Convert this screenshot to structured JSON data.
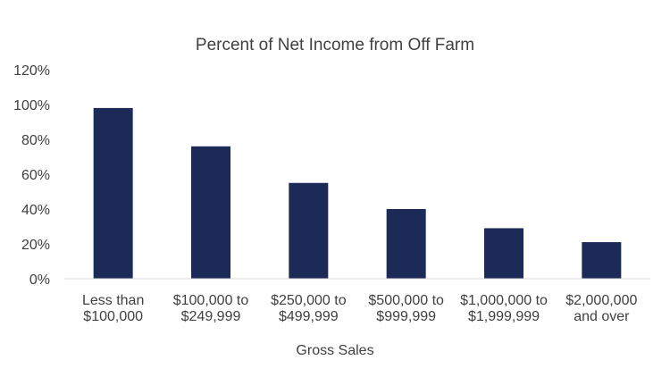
{
  "chart_data": {
    "type": "bar",
    "title": "Percent of Net Income from Off Farm",
    "xlabel": "Gross Sales",
    "ylabel": "",
    "categories": [
      [
        "Less than",
        "$100,000"
      ],
      [
        "$100,000 to",
        "$249,999"
      ],
      [
        "$250,000 to",
        "$499,999"
      ],
      [
        "$500,000 to",
        "$999,999"
      ],
      [
        "$1,000,000 to",
        "$1,999,999"
      ],
      [
        "$2,000,000",
        "and over"
      ]
    ],
    "values": [
      98,
      76,
      55,
      40,
      29,
      21
    ],
    "ylim": [
      0,
      120
    ],
    "yticks": [
      0,
      20,
      40,
      60,
      80,
      100,
      120
    ],
    "ytick_labels": [
      "0%",
      "20%",
      "40%",
      "60%",
      "80%",
      "100%",
      "120%"
    ],
    "grid": false,
    "legend": "none",
    "bar_color": "#1b2a56",
    "axis_color": "#d9d9d9"
  }
}
